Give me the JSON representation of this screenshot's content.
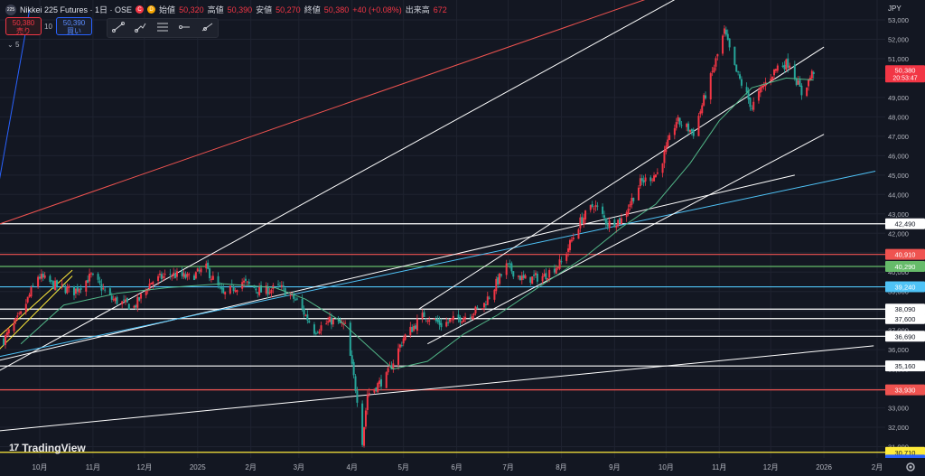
{
  "legend": {
    "symbol_logo": "225",
    "title": "Nikkei 225 Futures · 1日 · OSE",
    "c_badge": "C",
    "d_badge": "D",
    "open_label": "始値",
    "open": "50,320",
    "high_label": "高値",
    "high": "50,390",
    "low_label": "安値",
    "low": "50,270",
    "close_label": "終値",
    "close": "50,380",
    "change": "+40 (+0.08%)",
    "volume_label": "出来高",
    "volume": "672"
  },
  "trade": {
    "sell_price": "50,380",
    "sell_label": "売り",
    "spread": "10",
    "buy_price": "50,390",
    "buy_label": "買い"
  },
  "indicator": {
    "count": "5",
    "chevron": "⌄"
  },
  "toolbar": {
    "icons": [
      "trend-line-icon",
      "pencil-icon",
      "fib-icon",
      "horizontal-ray-icon",
      "ray-icon"
    ]
  },
  "currency": "JPY",
  "branding": "TradingView",
  "current_price": {
    "price": "50,380",
    "countdown": "20:53:47"
  },
  "colors": {
    "up": "#f23645",
    "down": "#26a69a",
    "ma": "#52b788",
    "white": "#ffffff",
    "red": "#ef5350",
    "blue": "#2962ff",
    "cyan": "#4fc3f7",
    "yellow": "#ffeb3b",
    "green": "#66bb6a"
  },
  "chart_data": {
    "type": "candlestick",
    "y_axis": {
      "ticks": [
        31000,
        32000,
        33000,
        34000,
        35000,
        36000,
        37000,
        38000,
        39000,
        40000,
        41000,
        42000,
        43000,
        44000,
        45000,
        46000,
        47000,
        48000,
        49000,
        50000,
        51000,
        52000,
        53000
      ],
      "tick_labels": [
        "31,000",
        "32,000",
        "33,000",
        "34,000",
        "35,000",
        "36,000",
        "37,000",
        "38,000",
        "39,000",
        "40,000",
        "41,000",
        "42,000",
        "43,000",
        "44,000",
        "45,000",
        "46,000",
        "47,000",
        "48,000",
        "49,000",
        "50,000",
        "51,000",
        "52,000",
        "53,000"
      ]
    },
    "x_axis": {
      "ticks": [
        "2024-10-01",
        "2024-11-01",
        "2024-12-01",
        "2025-01-01",
        "2025-02-01",
        "2025-03-01",
        "2025-04-01",
        "2025-05-01",
        "2025-06-01",
        "2025-07-01",
        "2025-08-01",
        "2025-09-01",
        "2025-10-01",
        "2025-11-01",
        "2025-12-01",
        "2026-01-01",
        "2026-02-01"
      ],
      "tick_labels": [
        "10月",
        "11月",
        "12月",
        "2025",
        "2月",
        "3月",
        "4月",
        "5月",
        "6月",
        "7月",
        "8月",
        "9月",
        "10月",
        "11月",
        "12月",
        "2026",
        "2月"
      ]
    },
    "price_path": [
      [
        "2024-09-10",
        36500
      ],
      [
        "2024-09-20",
        37800
      ],
      [
        "2024-09-30",
        39800
      ],
      [
        "2024-10-10",
        39300
      ],
      [
        "2024-10-21",
        39000
      ],
      [
        "2024-10-31",
        39800
      ],
      [
        "2024-11-12",
        38600
      ],
      [
        "2024-11-25",
        38200
      ],
      [
        "2024-12-05",
        39500
      ],
      [
        "2024-12-16",
        39900
      ],
      [
        "2024-12-27",
        39700
      ],
      [
        "2025-01-06",
        40200
      ],
      [
        "2025-01-16",
        38800
      ],
      [
        "2025-01-27",
        39500
      ],
      [
        "2025-02-07",
        39000
      ],
      [
        "2025-02-18",
        39200
      ],
      [
        "2025-02-28",
        38500
      ],
      [
        "2025-03-10",
        37000
      ],
      [
        "2025-03-20",
        37500
      ],
      [
        "2025-03-28",
        37200
      ],
      [
        "2025-04-04",
        33500
      ],
      [
        "2025-04-07",
        31300
      ],
      [
        "2025-04-10",
        33700
      ],
      [
        "2025-04-21",
        34600
      ],
      [
        "2025-05-01",
        36600
      ],
      [
        "2025-05-13",
        37800
      ],
      [
        "2025-05-23",
        37300
      ],
      [
        "2025-06-05",
        37700
      ],
      [
        "2025-06-16",
        38200
      ],
      [
        "2025-06-30",
        40300
      ],
      [
        "2025-07-10",
        39600
      ],
      [
        "2025-07-22",
        39800
      ],
      [
        "2025-08-01",
        40500
      ],
      [
        "2025-08-12",
        42600
      ],
      [
        "2025-08-20",
        43500
      ],
      [
        "2025-08-28",
        42500
      ],
      [
        "2025-09-05",
        42700
      ],
      [
        "2025-09-16",
        44600
      ],
      [
        "2025-09-26",
        45100
      ],
      [
        "2025-10-07",
        47800
      ],
      [
        "2025-10-17",
        47200
      ],
      [
        "2025-10-27",
        50000
      ],
      [
        "2025-11-04",
        52400
      ],
      [
        "2025-11-10",
        50500
      ],
      [
        "2025-11-20",
        48500
      ],
      [
        "2025-11-26",
        49500
      ],
      [
        "2025-12-05",
        50600
      ],
      [
        "2025-12-12",
        50800
      ],
      [
        "2025-12-19",
        49200
      ],
      [
        "2025-12-26",
        50380
      ]
    ],
    "ma_path": [
      [
        "2024-09-20",
        36300
      ],
      [
        "2024-10-15",
        38300
      ],
      [
        "2024-11-15",
        38900
      ],
      [
        "2024-12-15",
        39200
      ],
      [
        "2025-01-15",
        39400
      ],
      [
        "2025-02-15",
        39200
      ],
      [
        "2025-03-05",
        38600
      ],
      [
        "2025-03-25",
        37500
      ],
      [
        "2025-04-10",
        36200
      ],
      [
        "2025-04-25",
        35000
      ],
      [
        "2025-05-15",
        35400
      ],
      [
        "2025-06-05",
        36800
      ],
      [
        "2025-06-25",
        37800
      ],
      [
        "2025-07-20",
        39300
      ],
      [
        "2025-08-15",
        40800
      ],
      [
        "2025-09-05",
        42300
      ],
      [
        "2025-09-25",
        43500
      ],
      [
        "2025-10-15",
        45600
      ],
      [
        "2025-11-01",
        47800
      ],
      [
        "2025-11-20",
        49500
      ],
      [
        "2025-12-10",
        50000
      ],
      [
        "2025-12-26",
        49900
      ]
    ],
    "horizontal_lines": [
      {
        "price": 42490,
        "label": "42,490",
        "color": "#ffffff"
      },
      {
        "price": 40910,
        "label": "40,910",
        "color": "#ef5350"
      },
      {
        "price": 40290,
        "label": "40,290",
        "color": "#66bb6a"
      },
      {
        "price": 39240,
        "label": "39,240",
        "color": "#4fc3f7"
      },
      {
        "price": 38090,
        "label": "38,090",
        "color": "#ffffff"
      },
      {
        "price": 37600,
        "label": "37,600",
        "color": "#ffffff"
      },
      {
        "price": 36690,
        "label": "36,690",
        "color": "#ffffff"
      },
      {
        "price": 35160,
        "label": "35,160",
        "color": "#ffffff"
      },
      {
        "price": 33930,
        "label": "33,930",
        "color": "#ef5350"
      },
      {
        "price": 30710,
        "label": "30,710",
        "color": "#ffeb3b"
      },
      {
        "price": 30310,
        "label": "30,310",
        "color": "#2962ff"
      }
    ],
    "trend_lines": [
      {
        "from": [
          "2024-09-05",
          42400
        ],
        "to": [
          "2025-11-05",
          55500
        ],
        "color": "#ef5350"
      },
      {
        "from": [
          "2024-09-05",
          34800
        ],
        "to": [
          "2025-11-05",
          55500
        ],
        "color": "#ffffff"
      },
      {
        "from": [
          "2024-09-05",
          35400
        ],
        "to": [
          "2025-12-15",
          45000
        ],
        "color": "#ffffff"
      },
      {
        "from": [
          "2024-09-05",
          31800
        ],
        "to": [
          "2026-01-30",
          36200
        ],
        "color": "#ffffff"
      },
      {
        "from": [
          "2024-09-05",
          35600
        ],
        "to": [
          "2026-01-31",
          45200
        ],
        "color": "#4fc3f7"
      },
      {
        "from": [
          "2025-05-10",
          38100
        ],
        "to": [
          "2026-01-01",
          51600
        ],
        "color": "#ffffff"
      },
      {
        "from": [
          "2025-05-15",
          36300
        ],
        "to": [
          "2026-01-01",
          47100
        ],
        "color": "#ffffff"
      },
      {
        "from": [
          "2024-09-05",
          36500
        ],
        "to": [
          "2024-10-20",
          40100
        ],
        "color": "#ffeb3b"
      },
      {
        "from": [
          "2024-09-05",
          35800
        ],
        "to": [
          "2024-10-20",
          39800
        ],
        "color": "#ffeb3b"
      },
      {
        "from": [
          "2024-09-05",
          43500
        ],
        "to": [
          "2024-09-25",
          53500
        ],
        "color": "#2962ff"
      }
    ]
  }
}
